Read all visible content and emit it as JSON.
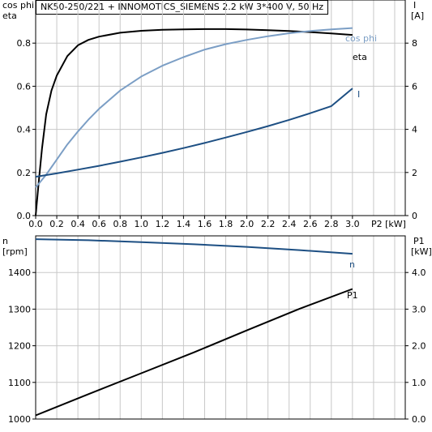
{
  "chart_data": [
    {
      "type": "line",
      "title": "NK50-250/221 + INNOMOTICS_SIEMENS   2.2 kW   3*400 V, 50 Hz",
      "xlabel": "P2 [kW]",
      "ylabel_left": [
        "cos phi",
        "eta"
      ],
      "ylabel_right": [
        "I",
        "[A]"
      ],
      "xlim": [
        0,
        3.5
      ],
      "ylim_left": [
        0,
        1.0
      ],
      "ylim_right": [
        0,
        10
      ],
      "x_ticks": [
        "0.0",
        "0.2",
        "0.4",
        "0.6",
        "0.8",
        "1.0",
        "1.2",
        "1.4",
        "1.6",
        "1.8",
        "2.0",
        "2.2",
        "2.4",
        "2.6",
        "2.8",
        "3.0"
      ],
      "y_ticks_left": [
        "0.0",
        "0.2",
        "0.4",
        "0.6",
        "0.8"
      ],
      "y_ticks_right": [
        "0",
        "2",
        "4",
        "6",
        "8"
      ],
      "grid": true,
      "series": [
        {
          "name": "eta",
          "axis": "left",
          "color": "#000000",
          "x": [
            0.0,
            0.03,
            0.06,
            0.1,
            0.15,
            0.2,
            0.3,
            0.4,
            0.5,
            0.6,
            0.8,
            1.0,
            1.2,
            1.4,
            1.6,
            1.8,
            2.0,
            2.2,
            2.4,
            2.6,
            2.8,
            3.0
          ],
          "y": [
            0.0,
            0.16,
            0.31,
            0.47,
            0.58,
            0.65,
            0.74,
            0.79,
            0.815,
            0.83,
            0.848,
            0.857,
            0.862,
            0.864,
            0.865,
            0.865,
            0.863,
            0.86,
            0.856,
            0.851,
            0.845,
            0.838
          ]
        },
        {
          "name": "cos phi",
          "axis": "left",
          "color": "#7b9ec5",
          "x": [
            0.0,
            0.05,
            0.1,
            0.2,
            0.3,
            0.4,
            0.5,
            0.6,
            0.8,
            1.0,
            1.2,
            1.4,
            1.6,
            1.8,
            2.0,
            2.2,
            2.4,
            2.6,
            2.8,
            3.0
          ],
          "y": [
            0.13,
            0.16,
            0.19,
            0.26,
            0.33,
            0.39,
            0.445,
            0.495,
            0.58,
            0.645,
            0.695,
            0.735,
            0.77,
            0.795,
            0.815,
            0.832,
            0.846,
            0.856,
            0.864,
            0.87
          ]
        },
        {
          "name": "I",
          "axis": "right",
          "color": "#1d4f83",
          "x": [
            0.0,
            0.2,
            0.4,
            0.6,
            0.8,
            1.0,
            1.2,
            1.4,
            1.6,
            1.8,
            2.0,
            2.2,
            2.4,
            2.6,
            2.8,
            3.0
          ],
          "y": [
            1.8,
            1.96,
            2.13,
            2.31,
            2.5,
            2.7,
            2.91,
            3.13,
            3.37,
            3.62,
            3.88,
            4.15,
            4.44,
            4.75,
            5.08,
            5.9
          ]
        }
      ]
    },
    {
      "type": "line",
      "ylabel_left": [
        "n",
        "[rpm]"
      ],
      "ylabel_right": [
        "P1",
        "[kW]"
      ],
      "xlim": [
        0,
        3.5
      ],
      "ylim_left": [
        1000,
        1500
      ],
      "ylim_right": [
        0,
        5
      ],
      "y_ticks_left": [
        "1000",
        "1100",
        "1200",
        "1300",
        "1400"
      ],
      "y_ticks_right": [
        "0.0",
        "1.0",
        "2.0",
        "3.0",
        "4.0"
      ],
      "grid": true,
      "series": [
        {
          "name": "n",
          "axis": "left",
          "color": "#1d4f83",
          "x": [
            0.0,
            0.5,
            1.0,
            1.5,
            2.0,
            2.5,
            3.0
          ],
          "y": [
            1491,
            1488,
            1483,
            1477,
            1470,
            1461,
            1451
          ]
        },
        {
          "name": "P1",
          "axis": "right",
          "color": "#000000",
          "x": [
            0.0,
            0.5,
            1.0,
            1.5,
            2.0,
            2.5,
            3.0
          ],
          "y": [
            0.1,
            0.68,
            1.25,
            1.82,
            2.42,
            3.01,
            3.55
          ]
        }
      ]
    }
  ]
}
